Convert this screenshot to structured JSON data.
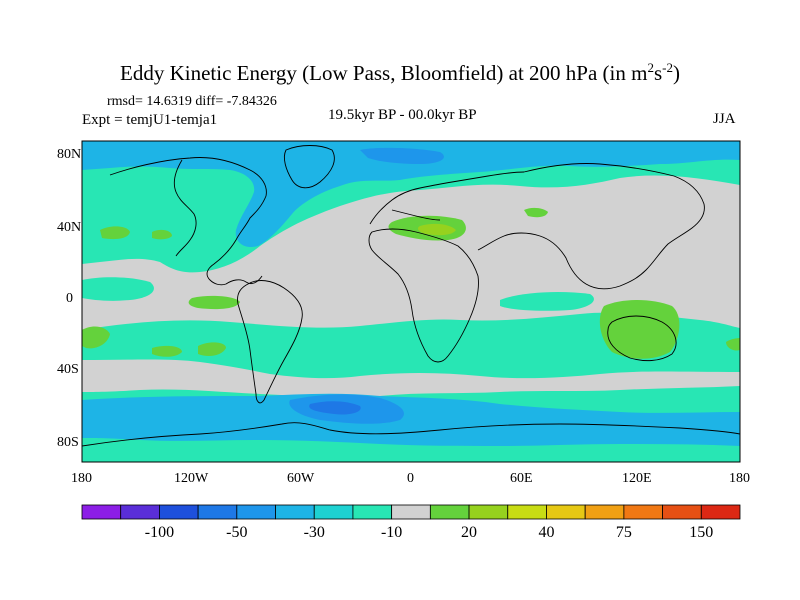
{
  "title": {
    "main": "Eddy Kinetic Energy (Low Pass, Bloomfield) at 200 hPa (in m",
    "sup1": "2",
    "mid": "s",
    "sup2": "-2",
    "end": ")"
  },
  "stats": "rmsd= 14.6319 diff= -7.84326",
  "expt": "Expt = temjU1-temja1",
  "period": "19.5kyr BP - 00.0kyr BP",
  "season": "JJA",
  "lat_labels": [
    "80N",
    "40N",
    "0",
    "40S",
    "80S"
  ],
  "lon_labels": [
    "180",
    "120W",
    "60W",
    "0",
    "60E",
    "120E",
    "180"
  ],
  "colorbar": {
    "colors": [
      "#8c1ee6",
      "#5a2ed8",
      "#1e50dc",
      "#1e78e6",
      "#1e96eb",
      "#1eb4e6",
      "#1ed2d2",
      "#28e6b4",
      "#d2d2d2",
      "#64d23c",
      "#96d21e",
      "#c8dc14",
      "#e6c814",
      "#f0a014",
      "#f07814",
      "#e65014",
      "#dc2814"
    ],
    "labels": [
      "-100",
      "-50",
      "-30",
      "-10",
      "20",
      "40",
      "75",
      "150"
    ]
  },
  "map_colors": {
    "base": "#d2d2d2",
    "teal": "#28e6b4",
    "cyan": "#1eb4e6",
    "lightblue": "#1e96eb",
    "blue": "#1e78e6",
    "green": "#64d23c",
    "yellowgreen": "#96d21e"
  }
}
